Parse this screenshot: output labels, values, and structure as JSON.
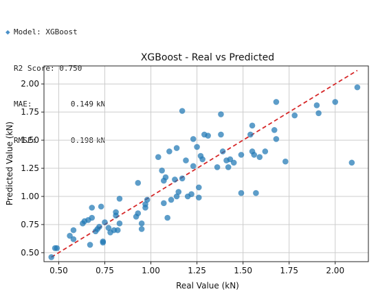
{
  "metrics": {
    "model_line": "Model: XGBoost",
    "r2_line": "R2 Score: 0.750",
    "mae_label": "MAE:",
    "mae_value": "0.149",
    "mae_unit": "kN",
    "rmse_label": "RMSE:",
    "rmse_value": "0.198",
    "rmse_unit": "kN"
  },
  "colors": {
    "points": "#1f77b4",
    "reference_line": "#d62728",
    "grid": "#cccccc",
    "bullet": "#4a90c8"
  },
  "chart_data": {
    "type": "scatter",
    "title": "XGBoost - Real vs Predicted",
    "xlabel": "Real Value (kN)",
    "ylabel": "Predicted Value (kN)",
    "xlim": [
      0.42,
      2.18
    ],
    "ylim": [
      0.42,
      2.16
    ],
    "xticks": [
      0.5,
      0.75,
      1.0,
      1.25,
      1.5,
      1.75,
      2.0
    ],
    "yticks": [
      0.5,
      0.75,
      1.0,
      1.25,
      1.5,
      1.75,
      2.0
    ],
    "xtick_labels": [
      "0.50",
      "0.75",
      "1.00",
      "1.25",
      "1.50",
      "1.75",
      "2.00"
    ],
    "ytick_labels": [
      "0.50",
      "0.75",
      "1.00",
      "1.25",
      "1.50",
      "1.75",
      "2.00"
    ],
    "grid": true,
    "reference_line": {
      "style": "dashed",
      "x": [
        0.46,
        2.12
      ],
      "y": [
        0.46,
        2.12
      ]
    },
    "points": [
      [
        0.46,
        0.46
      ],
      [
        0.48,
        0.54
      ],
      [
        0.49,
        0.54
      ],
      [
        0.56,
        0.65
      ],
      [
        0.58,
        0.62
      ],
      [
        0.58,
        0.7
      ],
      [
        0.63,
        0.76
      ],
      [
        0.64,
        0.78
      ],
      [
        0.66,
        0.79
      ],
      [
        0.67,
        0.57
      ],
      [
        0.68,
        0.9
      ],
      [
        0.68,
        0.81
      ],
      [
        0.7,
        0.69
      ],
      [
        0.71,
        0.71
      ],
      [
        0.72,
        0.73
      ],
      [
        0.73,
        0.91
      ],
      [
        0.74,
        0.59
      ],
      [
        0.74,
        0.6
      ],
      [
        0.75,
        0.77
      ],
      [
        0.77,
        0.72
      ],
      [
        0.78,
        0.68
      ],
      [
        0.8,
        0.7
      ],
      [
        0.81,
        0.83
      ],
      [
        0.81,
        0.86
      ],
      [
        0.82,
        0.7
      ],
      [
        0.83,
        0.76
      ],
      [
        0.83,
        0.98
      ],
      [
        0.92,
        0.82
      ],
      [
        0.93,
        0.85
      ],
      [
        0.93,
        1.12
      ],
      [
        0.95,
        0.71
      ],
      [
        0.95,
        0.76
      ],
      [
        0.97,
        0.9
      ],
      [
        0.97,
        0.93
      ],
      [
        0.98,
        0.97
      ],
      [
        1.04,
        1.35
      ],
      [
        1.06,
        1.23
      ],
      [
        1.07,
        1.14
      ],
      [
        1.08,
        1.17
      ],
      [
        1.07,
        0.94
      ],
      [
        1.09,
        0.81
      ],
      [
        1.1,
        1.4
      ],
      [
        1.11,
        0.97
      ],
      [
        1.13,
        1.15
      ],
      [
        1.14,
        1.43
      ],
      [
        1.14,
        1.0
      ],
      [
        1.15,
        1.04
      ],
      [
        1.17,
        1.76
      ],
      [
        1.17,
        1.16
      ],
      [
        1.19,
        1.32
      ],
      [
        1.2,
        1.0
      ],
      [
        1.22,
        1.02
      ],
      [
        1.23,
        1.51
      ],
      [
        1.23,
        1.27
      ],
      [
        1.25,
        1.44
      ],
      [
        1.26,
        1.08
      ],
      [
        1.26,
        0.99
      ],
      [
        1.27,
        1.36
      ],
      [
        1.28,
        1.33
      ],
      [
        1.29,
        1.55
      ],
      [
        1.31,
        1.54
      ],
      [
        1.36,
        1.26
      ],
      [
        1.38,
        1.73
      ],
      [
        1.38,
        1.55
      ],
      [
        1.39,
        1.4
      ],
      [
        1.41,
        1.32
      ],
      [
        1.42,
        1.26
      ],
      [
        1.43,
        1.33
      ],
      [
        1.45,
        1.3
      ],
      [
        1.49,
        1.37
      ],
      [
        1.49,
        1.03
      ],
      [
        1.54,
        1.55
      ],
      [
        1.55,
        1.63
      ],
      [
        1.55,
        1.4
      ],
      [
        1.56,
        1.37
      ],
      [
        1.57,
        1.03
      ],
      [
        1.59,
        1.35
      ],
      [
        1.62,
        1.4
      ],
      [
        1.67,
        1.59
      ],
      [
        1.68,
        1.51
      ],
      [
        1.68,
        1.84
      ],
      [
        1.73,
        1.31
      ],
      [
        1.78,
        1.72
      ],
      [
        1.9,
        1.81
      ],
      [
        1.91,
        1.74
      ],
      [
        2.0,
        1.84
      ],
      [
        2.09,
        1.3
      ],
      [
        2.12,
        1.97
      ]
    ]
  }
}
